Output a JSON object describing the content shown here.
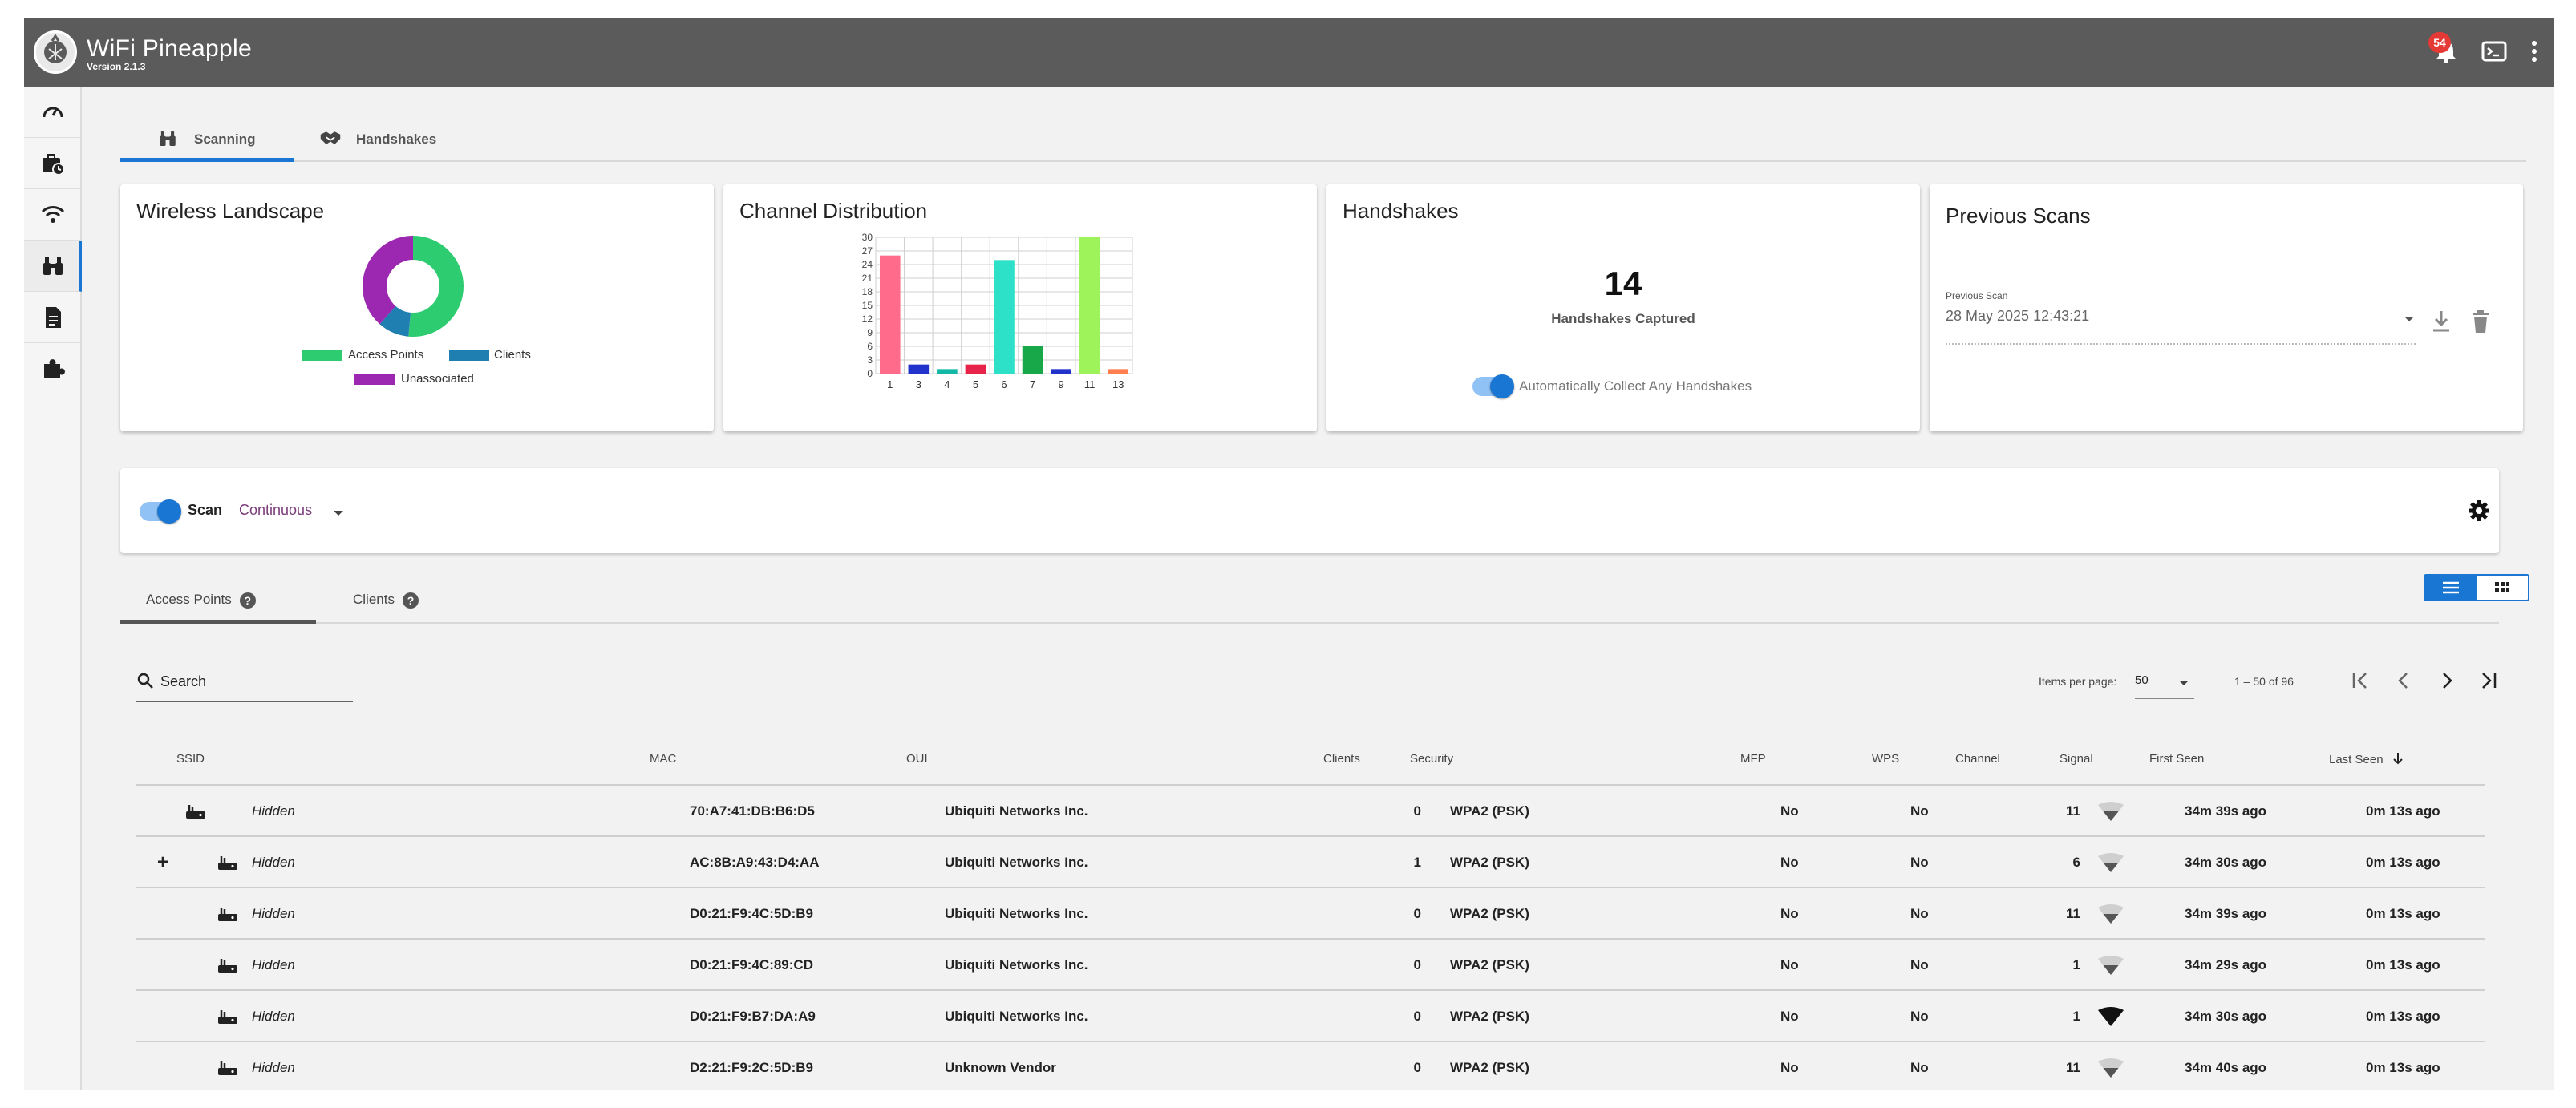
{
  "app": {
    "title": "WiFi Pineapple",
    "version": "Version 2.1.3",
    "notification_count": "54"
  },
  "sidenav": {
    "items": [
      "dashboard-icon",
      "campaigns-icon",
      "wifi-icon",
      "recon-icon",
      "logs-icon",
      "modules-icon"
    ],
    "active": "recon-icon"
  },
  "tabs": [
    {
      "label": "Scanning",
      "icon": "binoculars-icon",
      "active": true
    },
    {
      "label": "Handshakes",
      "icon": "handshake-icon",
      "active": false
    }
  ],
  "wireless_landscape": {
    "title": "Wireless Landscape",
    "legend": [
      "Access Points",
      "Clients",
      "Unassociated"
    ],
    "colors": [
      "#2ecc71",
      "#1f7fb0",
      "#9c27b0"
    ]
  },
  "channel_distribution": {
    "title": "Channel Distribution",
    "chart_data": {
      "type": "bar",
      "categories": [
        "1",
        "3",
        "4",
        "5",
        "6",
        "7",
        "9",
        "11",
        "13"
      ],
      "values": [
        26,
        2,
        1,
        2,
        25,
        6,
        1,
        30,
        1
      ],
      "ylim": [
        0,
        30
      ],
      "yticks": [
        "30",
        "27",
        "24",
        "21",
        "18",
        "15",
        "12",
        "9",
        "6",
        "3",
        "0"
      ],
      "colors": [
        "#ff6b8a",
        "#2233cc",
        "#14b8a6",
        "#e8234a",
        "#2de0c8",
        "#18a84a",
        "#2233cc",
        "#9ef25a",
        "#ff7f50"
      ],
      "grid": true
    }
  },
  "handshakes": {
    "title": "Handshakes",
    "count": "14",
    "caption": "Handshakes Captured",
    "auto_label": "Automatically Collect Any Handshakes"
  },
  "previous_scans": {
    "title": "Previous Scans",
    "field_label": "Previous Scan",
    "value": "28 May 2025 12:43:21"
  },
  "scan": {
    "label": "Scan",
    "mode": "Continuous"
  },
  "subtabs": [
    {
      "label": "Access Points",
      "active": true
    },
    {
      "label": "Clients",
      "active": false
    }
  ],
  "search": {
    "placeholder": "Search"
  },
  "pagination": {
    "items_label": "Items per page:",
    "per_page": "50",
    "range": "1 – 50 of 96"
  },
  "table": {
    "headers": [
      "SSID",
      "MAC",
      "OUI",
      "Clients",
      "Security",
      "MFP",
      "WPS",
      "Channel",
      "Signal",
      "First Seen",
      "Last Seen"
    ],
    "rows": [
      {
        "expand": "",
        "ssid": "Hidden",
        "mac": "70:A7:41:DB:B6:D5",
        "oui": "Ubiquiti Networks Inc.",
        "clients": "0",
        "security": "WPA2 (PSK)",
        "mfp": "No",
        "wps": "No",
        "channel": "11",
        "signal": 2,
        "first_seen": "34m 39s ago",
        "last_seen": "0m 13s ago"
      },
      {
        "expand": "+",
        "ssid": "Hidden",
        "mac": "AC:8B:A9:43:D4:AA",
        "oui": "Ubiquiti Networks Inc.",
        "clients": "1",
        "security": "WPA2 (PSK)",
        "mfp": "No",
        "wps": "No",
        "channel": "6",
        "signal": 2,
        "first_seen": "34m 30s ago",
        "last_seen": "0m 13s ago"
      },
      {
        "expand": "",
        "ssid": "Hidden",
        "mac": "D0:21:F9:4C:5D:B9",
        "oui": "Ubiquiti Networks Inc.",
        "clients": "0",
        "security": "WPA2 (PSK)",
        "mfp": "No",
        "wps": "No",
        "channel": "11",
        "signal": 2,
        "first_seen": "34m 39s ago",
        "last_seen": "0m 13s ago"
      },
      {
        "expand": "",
        "ssid": "Hidden",
        "mac": "D0:21:F9:4C:89:CD",
        "oui": "Ubiquiti Networks Inc.",
        "clients": "0",
        "security": "WPA2 (PSK)",
        "mfp": "No",
        "wps": "No",
        "channel": "1",
        "signal": 2,
        "first_seen": "34m 29s ago",
        "last_seen": "0m 13s ago"
      },
      {
        "expand": "",
        "ssid": "Hidden",
        "mac": "D0:21:F9:B7:DA:A9",
        "oui": "Ubiquiti Networks Inc.",
        "clients": "0",
        "security": "WPA2 (PSK)",
        "mfp": "No",
        "wps": "No",
        "channel": "1",
        "signal": 4,
        "first_seen": "34m 30s ago",
        "last_seen": "0m 13s ago"
      },
      {
        "expand": "",
        "ssid": "Hidden",
        "mac": "D2:21:F9:2C:5D:B9",
        "oui": "Unknown Vendor",
        "clients": "0",
        "security": "WPA2 (PSK)",
        "mfp": "No",
        "wps": "No",
        "channel": "11",
        "signal": 2,
        "first_seen": "34m 40s ago",
        "last_seen": "0m 13s ago"
      }
    ]
  }
}
